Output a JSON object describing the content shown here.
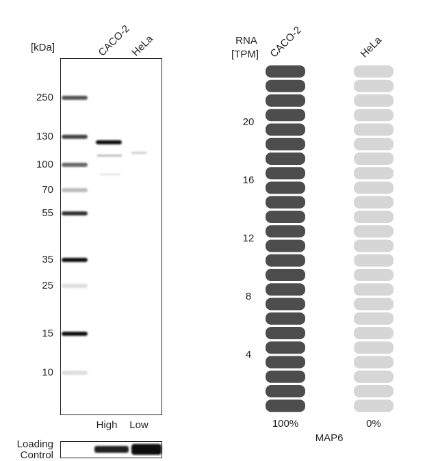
{
  "western_blot": {
    "unit_label": "[kDa]",
    "lanes": [
      "CACO-2",
      "HeLa"
    ],
    "markers": [
      250,
      130,
      100,
      70,
      55,
      35,
      25,
      15,
      10
    ],
    "intensity_labels": [
      "High",
      "Low"
    ],
    "loading_control_label": [
      "Loading",
      "Control"
    ]
  },
  "rna": {
    "axis_label": [
      "RNA",
      "[TPM]"
    ],
    "cell_lines": [
      "CACO-2",
      "HeLa"
    ],
    "ticks": [
      20,
      16,
      12,
      8,
      4
    ],
    "percentages": [
      "100%",
      "0%"
    ],
    "gene": "MAP6"
  }
}
